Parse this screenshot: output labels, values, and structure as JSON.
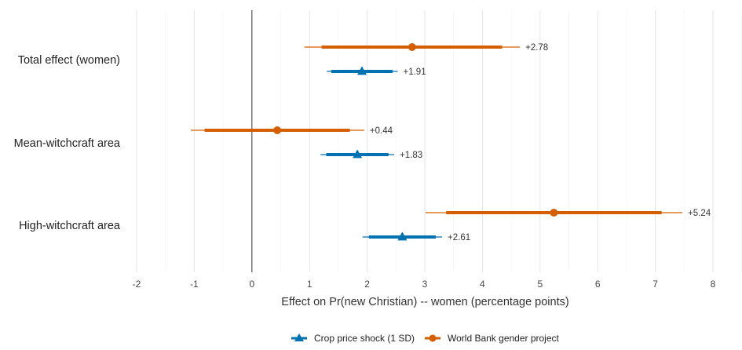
{
  "chart_data": {
    "type": "forest",
    "categories": [
      "Total effect (women)",
      "Mean-witchcraft area",
      "High-witchcraft area"
    ],
    "xlabel": "Effect on Pr(new Christian) -- women (percentage points)",
    "xlim": [
      -2,
      8
    ],
    "xticks": [
      -2,
      -1,
      0,
      1,
      2,
      3,
      4,
      5,
      6,
      7,
      8
    ],
    "grid": true,
    "reference_line": 0,
    "legend_position": "bottom",
    "series": [
      {
        "name": "World Bank gender project",
        "color": "#d55e00",
        "marker": "circle",
        "points": [
          {
            "category": "Total effect (women)",
            "estimate": 2.78,
            "ci90": [
              1.21,
              4.34
            ],
            "ci95": [
              0.91,
              4.65
            ],
            "label": "+2.78"
          },
          {
            "category": "Mean-witchcraft area",
            "estimate": 0.44,
            "ci90": [
              -0.82,
              1.7
            ],
            "ci95": [
              -1.06,
              1.95
            ],
            "label": "+0.44"
          },
          {
            "category": "High-witchcraft area",
            "estimate": 5.24,
            "ci90": [
              3.37,
              7.11
            ],
            "ci95": [
              3.01,
              7.47
            ],
            "label": "+5.24"
          }
        ]
      },
      {
        "name": "Crop price shock (1 SD)",
        "color": "#0072b2",
        "marker": "triangle",
        "points": [
          {
            "category": "Total effect (women)",
            "estimate": 1.91,
            "ci90": [
              1.38,
              2.44
            ],
            "ci95": [
              1.3,
              2.53
            ],
            "label": "+1.91"
          },
          {
            "category": "Mean-witchcraft area",
            "estimate": 1.83,
            "ci90": [
              1.29,
              2.37
            ],
            "ci95": [
              1.19,
              2.47
            ],
            "label": "+1.83"
          },
          {
            "category": "High-witchcraft area",
            "estimate": 2.61,
            "ci90": [
              2.03,
              3.19
            ],
            "ci95": [
              1.92,
              3.3
            ],
            "label": "+2.61"
          }
        ]
      }
    ],
    "legend": [
      {
        "name": "Crop price shock (1 SD)",
        "color": "#0072b2",
        "marker": "triangle"
      },
      {
        "name": "World Bank gender project",
        "color": "#d55e00",
        "marker": "circle"
      }
    ]
  }
}
